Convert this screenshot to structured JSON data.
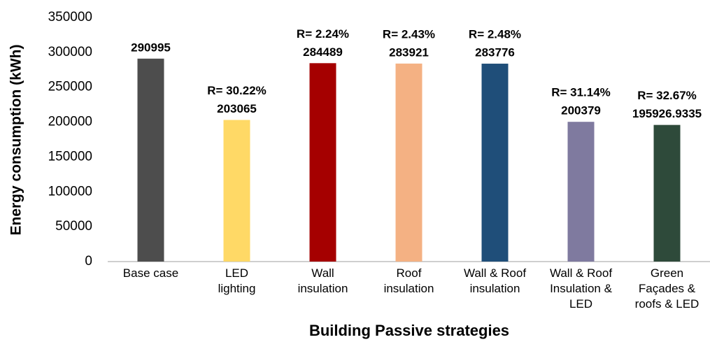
{
  "chart_data": {
    "type": "bar",
    "x_label": "Building Passive strategies",
    "y_label": "Energy consumption (kWh)",
    "categories": [
      "Base case",
      "LED\nlighting",
      "Wall\ninsulation",
      "Roof\ninsulation",
      "Wall & Roof\ninsulation",
      "Wall & Roof\nInsulation &\nLED",
      "Green\nFaçades &\nroofs & LED"
    ],
    "values": [
      290995,
      203065,
      284489,
      283921,
      283776,
      200379,
      195926.9335
    ],
    "annotations": [
      null,
      "R= 30.22%",
      "R= 2.24%",
      "R= 2.43%",
      "R= 2.48%",
      "R= 31.14%",
      "R= 32.67%"
    ],
    "colors": [
      "#4d4d4d",
      "#ffd966",
      "#a50000",
      "#f4b183",
      "#1f4e79",
      "#7f7a9f",
      "#2e4a3a"
    ],
    "ylim": [
      0,
      350000
    ],
    "yticks": [
      0,
      50000,
      100000,
      150000,
      200000,
      250000,
      300000,
      350000
    ],
    "grid": false
  }
}
